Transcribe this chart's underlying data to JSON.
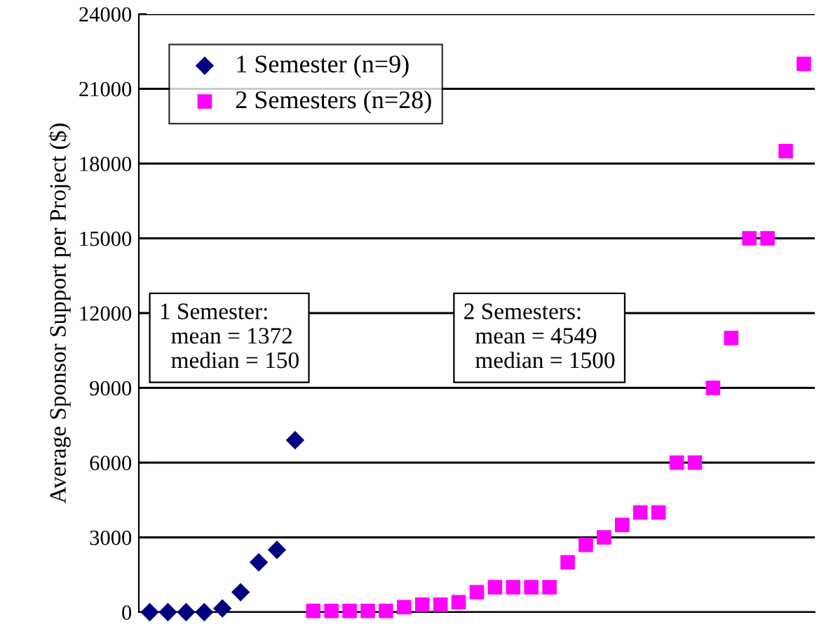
{
  "chart_data": {
    "type": "scatter",
    "ylabel": "Average Sponsor Support per Project ($)",
    "categories": [
      null,
      null,
      null,
      null,
      null,
      null,
      null,
      null,
      null,
      null,
      null,
      null,
      null,
      null,
      null,
      null,
      null,
      null,
      null,
      null,
      null,
      null,
      null,
      null,
      null,
      null,
      null,
      null,
      null,
      null,
      null,
      null,
      null,
      null,
      null,
      null,
      null
    ],
    "series": [
      {
        "name": "1 Semester (n=9)",
        "color": "#000080",
        "marker": "diamond",
        "values": [
          0,
          0,
          0,
          0,
          150,
          800,
          2000,
          2500,
          6900,
          null,
          null,
          null,
          null,
          null,
          null,
          null,
          null,
          null,
          null,
          null,
          null,
          null,
          null,
          null,
          null,
          null,
          null,
          null,
          null,
          null,
          null,
          null,
          null,
          null,
          null,
          null,
          null
        ]
      },
      {
        "name": "2 Semesters (n=28)",
        "color": "#ff00ff",
        "marker": "square",
        "values": [
          null,
          null,
          null,
          null,
          null,
          null,
          null,
          null,
          null,
          50,
          50,
          50,
          50,
          50,
          200,
          300,
          300,
          400,
          800,
          1000,
          1000,
          1000,
          1000,
          2000,
          2700,
          3000,
          3500,
          4000,
          4000,
          6000,
          6000,
          9000,
          11000,
          15000,
          15000,
          18500,
          22000
        ]
      }
    ],
    "ylim": [
      0,
      24000
    ],
    "yticks": [
      0,
      3000,
      6000,
      9000,
      12000,
      15000,
      18000,
      21000,
      24000
    ],
    "grid": "y",
    "legend": "top left",
    "tick_labels": "y",
    "annotations": [
      "1 Semester:\n  mean = 1372\n  median = 150",
      "2 Semesters:\n  mean = 4549\n  median = 1500"
    ]
  }
}
